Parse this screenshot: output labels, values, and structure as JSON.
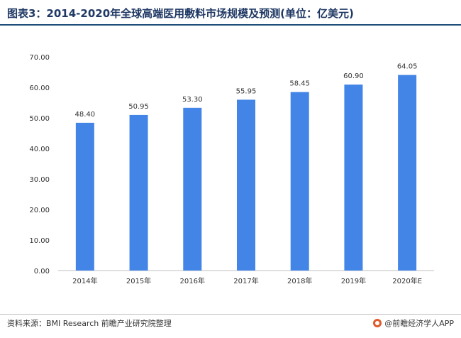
{
  "header": {
    "title": "图表3：2014-2020年全球高端医用敷料市场规模及预测(单位：亿美元)"
  },
  "chart_data": {
    "type": "bar",
    "categories": [
      "2014年",
      "2015年",
      "2016年",
      "2017年",
      "2018年",
      "2019年",
      "2020年E"
    ],
    "values": [
      48.4,
      50.95,
      53.3,
      55.95,
      58.45,
      60.9,
      64.05
    ],
    "value_labels": [
      "48.40",
      "50.95",
      "53.30",
      "55.95",
      "58.45",
      "60.90",
      "64.05"
    ],
    "ylim": [
      0,
      70
    ],
    "yticks": [
      "0.00",
      "10.00",
      "20.00",
      "30.00",
      "40.00",
      "50.00",
      "60.00",
      "70.00"
    ],
    "grid": false,
    "bar_color": "#4285e6"
  },
  "footer": {
    "source": "资料来源：BMI Research 前瞻产业研究院整理",
    "brand": "@前瞻经济学人APP"
  }
}
